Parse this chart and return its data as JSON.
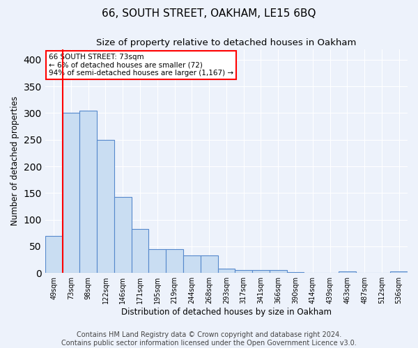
{
  "title1": "66, SOUTH STREET, OAKHAM, LE15 6BQ",
  "title2": "Size of property relative to detached houses in Oakham",
  "xlabel": "Distribution of detached houses by size in Oakham",
  "ylabel": "Number of detached properties",
  "categories": [
    "49sqm",
    "73sqm",
    "98sqm",
    "122sqm",
    "146sqm",
    "171sqm",
    "195sqm",
    "219sqm",
    "244sqm",
    "268sqm",
    "293sqm",
    "317sqm",
    "341sqm",
    "366sqm",
    "390sqm",
    "414sqm",
    "439sqm",
    "463sqm",
    "487sqm",
    "512sqm",
    "536sqm"
  ],
  "values": [
    70,
    300,
    305,
    250,
    143,
    83,
    45,
    45,
    33,
    33,
    8,
    5,
    5,
    5,
    2,
    0,
    0,
    3,
    0,
    0,
    3
  ],
  "bar_color": "#c9ddf2",
  "bar_edge_color": "#5588cc",
  "highlight_index": 1,
  "annotation_text": "66 SOUTH STREET: 73sqm\n← 6% of detached houses are smaller (72)\n94% of semi-detached houses are larger (1,167) →",
  "annotation_box_color": "white",
  "annotation_box_edge": "red",
  "ylim": [
    0,
    420
  ],
  "yticks": [
    0,
    50,
    100,
    150,
    200,
    250,
    300,
    350,
    400
  ],
  "footer": "Contains HM Land Registry data © Crown copyright and database right 2024.\nContains public sector information licensed under the Open Government Licence v3.0.",
  "background_color": "#edf2fb",
  "grid_color": "#ffffff",
  "title_fontsize": 11,
  "subtitle_fontsize": 9.5,
  "footer_fontsize": 7,
  "ylabel_fontsize": 8.5,
  "xlabel_fontsize": 8.5,
  "tick_fontsize": 7
}
